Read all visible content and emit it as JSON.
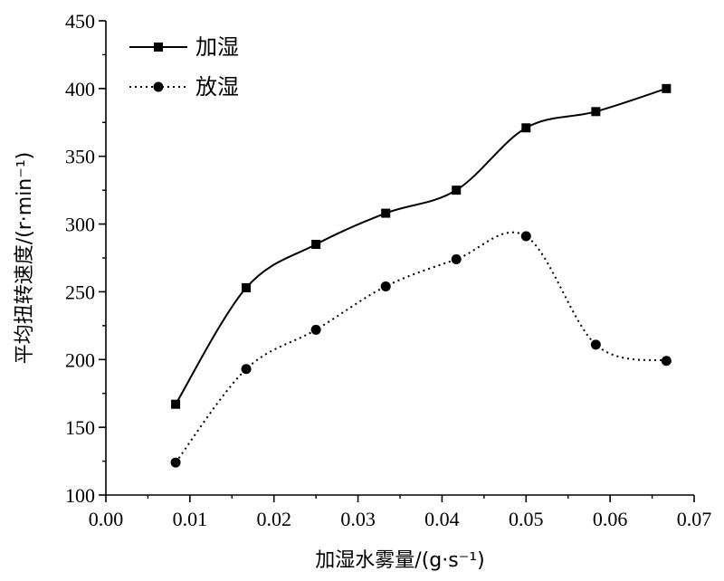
{
  "chart_data": {
    "type": "line",
    "xlabel": "加湿水雾量/(g·s⁻¹)",
    "ylabel": "平均扭转速度/(r·min⁻¹)",
    "xlim": [
      0,
      0.07
    ],
    "ylim": [
      100,
      450
    ],
    "x_ticks": [
      "0.00",
      "0.01",
      "0.02",
      "0.03",
      "0.04",
      "0.05",
      "0.06",
      "0.07"
    ],
    "y_ticks": [
      "100",
      "150",
      "200",
      "250",
      "300",
      "350",
      "400",
      "450"
    ],
    "grid": false,
    "legend_position": "top-left",
    "series": [
      {
        "name": "加湿",
        "line_style": "solid",
        "marker": "square",
        "color": "#000000",
        "x": [
          0.0083,
          0.0167,
          0.025,
          0.0333,
          0.0417,
          0.05,
          0.0583,
          0.0667
        ],
        "y": [
          167,
          253,
          285,
          308,
          325,
          371,
          383,
          400
        ]
      },
      {
        "name": "放湿",
        "line_style": "dotted",
        "marker": "circle",
        "color": "#000000",
        "x": [
          0.0083,
          0.0167,
          0.025,
          0.0333,
          0.0417,
          0.05,
          0.0583,
          0.0667
        ],
        "y": [
          124,
          193,
          222,
          254,
          274,
          291,
          211,
          199
        ]
      }
    ]
  }
}
